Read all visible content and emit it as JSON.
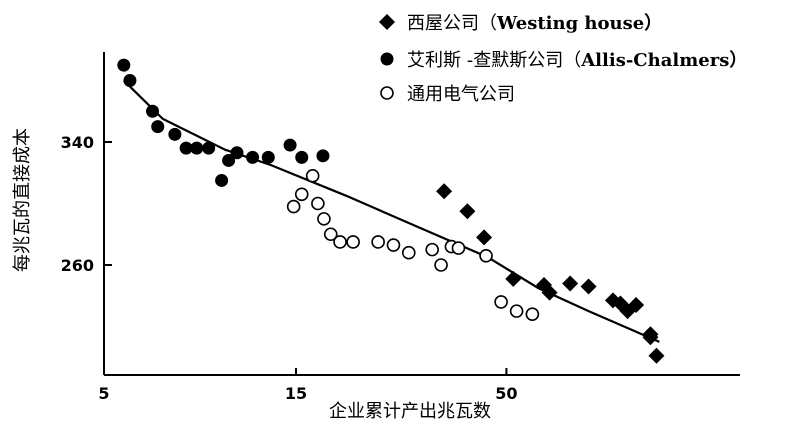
{
  "chart_data": {
    "type": "scatter",
    "title": "",
    "xlabel": "企业累计产出兆瓦数",
    "ylabel": "每兆瓦的直接成本",
    "x_ticks": [
      "5",
      "15",
      "50"
    ],
    "y_ticks": [
      "340",
      "260"
    ],
    "x_scale": "log",
    "xlim": [
      5,
      300
    ],
    "ylim": [
      195,
      400
    ],
    "grid": false,
    "legend_position": "top-right",
    "series": [
      {
        "name": "西屋公司（Westing house）",
        "name_zh": "西屋公司（",
        "name_en": "Westing house）",
        "marker": "diamond-filled",
        "points": [
          [
            35,
            308
          ],
          [
            40,
            295
          ],
          [
            44,
            278
          ],
          [
            52,
            251
          ],
          [
            62,
            247
          ],
          [
            64,
            242
          ],
          [
            72,
            248
          ],
          [
            80,
            246
          ],
          [
            92,
            237
          ],
          [
            96,
            235
          ],
          [
            100,
            230
          ],
          [
            105,
            234
          ],
          [
            114,
            215
          ],
          [
            114,
            213
          ],
          [
            118,
            201
          ]
        ]
      },
      {
        "name": "艾利斯-查默斯公司（Allis-Chalmers）",
        "name_zh": "艾利斯 -查默斯公司（",
        "name_en": "Allis-Chalmers）",
        "marker": "circle-filled",
        "points": [
          [
            5.6,
            390
          ],
          [
            5.8,
            380
          ],
          [
            6.6,
            360
          ],
          [
            6.8,
            350
          ],
          [
            7.5,
            345
          ],
          [
            8.0,
            336
          ],
          [
            8.5,
            336
          ],
          [
            9.1,
            336
          ],
          [
            9.8,
            315
          ],
          [
            10.2,
            328
          ],
          [
            10.7,
            333
          ],
          [
            11.7,
            330
          ],
          [
            12.8,
            330
          ],
          [
            14.5,
            338
          ],
          [
            15.5,
            330
          ],
          [
            17.5,
            331
          ]
        ]
      },
      {
        "name": "通用电气公司",
        "name_zh": "通用电气公司",
        "name_en": "",
        "marker": "circle-open",
        "points": [
          [
            14.8,
            298
          ],
          [
            15.5,
            306
          ],
          [
            16.5,
            318
          ],
          [
            17.0,
            300
          ],
          [
            17.6,
            290
          ],
          [
            18.3,
            280
          ],
          [
            19.3,
            275
          ],
          [
            20.8,
            275
          ],
          [
            24.0,
            275
          ],
          [
            26.2,
            273
          ],
          [
            28.6,
            268
          ],
          [
            32.7,
            270
          ],
          [
            34.4,
            260
          ],
          [
            36.5,
            272
          ],
          [
            38.0,
            271
          ],
          [
            44.5,
            266
          ],
          [
            48.5,
            236
          ],
          [
            53.0,
            230
          ],
          [
            58.0,
            228
          ]
        ]
      }
    ],
    "trend_line": {
      "points": [
        [
          5.6,
          380
        ],
        [
          7,
          355
        ],
        [
          10,
          335
        ],
        [
          13,
          325
        ],
        [
          20,
          305
        ],
        [
          30,
          285
        ],
        [
          45,
          265
        ],
        [
          60,
          245
        ],
        [
          80,
          230
        ],
        [
          120,
          210
        ]
      ]
    }
  }
}
